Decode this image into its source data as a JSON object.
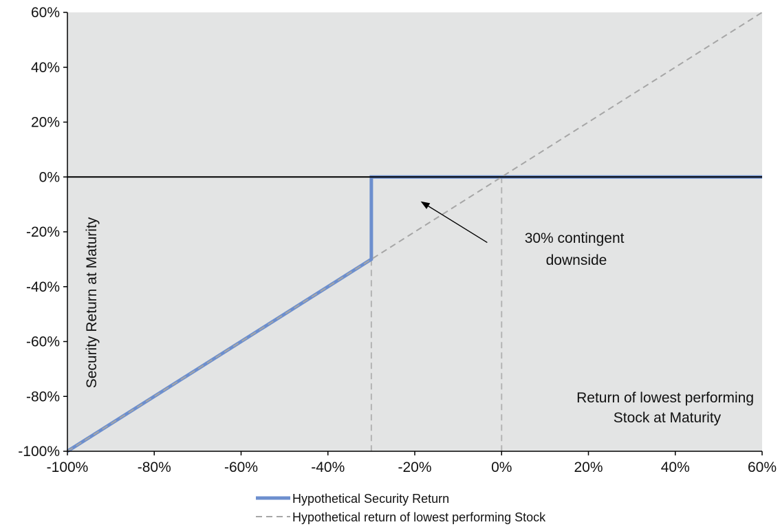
{
  "chart_data": {
    "type": "line",
    "xlim": [
      -1.0,
      0.6
    ],
    "ylim": [
      -1.0,
      0.6
    ],
    "x_ticks": [
      -1.0,
      -0.8,
      -0.6,
      -0.4,
      -0.2,
      0.0,
      0.2,
      0.4,
      0.6
    ],
    "x_tick_labels": [
      "-100%",
      "-80%",
      "-60%",
      "-40%",
      "-20%",
      "0%",
      "20%",
      "40%",
      "60%"
    ],
    "y_ticks": [
      0.6,
      0.4,
      0.2,
      0.0,
      -0.2,
      -0.4,
      -0.6,
      -0.8,
      -1.0
    ],
    "y_tick_labels": [
      "60%",
      "40%",
      "20%",
      "0%",
      "-20%",
      "-40%",
      "-60%",
      "-80%",
      "-100%"
    ],
    "ylabel": "Security Return at Maturity",
    "xlabel": "Return of lowest performing Stock at Maturity",
    "xlabel_lines": [
      "Return of lowest performing",
      "Stock at Maturity"
    ],
    "grid": false,
    "plot_background": "#e3e4e4",
    "legend_position": "bottom",
    "series": [
      {
        "name": "Hypothetical Security Return",
        "style": "solid",
        "color": "#6d8fce",
        "x": [
          -1.0,
          -0.3,
          -0.3,
          0.6
        ],
        "y": [
          -1.0,
          -0.3,
          0.0,
          0.0
        ]
      },
      {
        "name": "Hypothetical return of lowest performing Stock",
        "style": "dashed",
        "color": "#a6a6a6",
        "x": [
          -1.0,
          0.6
        ],
        "y": [
          -1.0,
          0.6
        ]
      }
    ],
    "vertical_reference_lines": [
      -0.3,
      0.0
    ],
    "annotation": {
      "lines": [
        "30% contingent",
        "downside"
      ],
      "arrow_from": [
        -0.0331,
        -0.2391
      ],
      "arrow_to": [
        -0.1863,
        -0.0891
      ]
    }
  }
}
